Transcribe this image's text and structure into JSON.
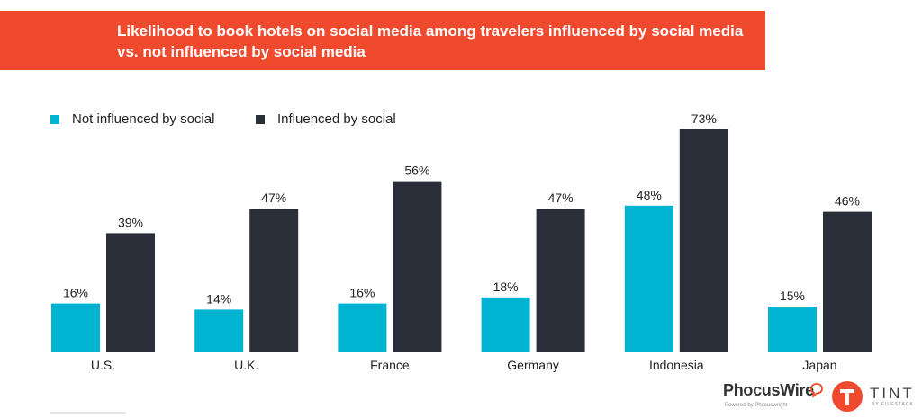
{
  "title": "Likelihood to book hotels on social media among travelers influenced by social media vs. not influenced by social media",
  "colors": {
    "banner": "#f04a2e",
    "not_influenced": "#00b3d1",
    "influenced": "#2a2e38"
  },
  "legend": [
    {
      "label": "Not influenced by social",
      "color": "#00b3d1"
    },
    {
      "label": "Influenced by social",
      "color": "#2a2e38"
    }
  ],
  "chart_data": {
    "type": "bar",
    "title": "Likelihood to book hotels on social media among travelers influenced by social media vs. not influenced by social media",
    "categories": [
      "U.S.",
      "U.K.",
      "France",
      "Germany",
      "Indonesia",
      "Japan"
    ],
    "series": [
      {
        "name": "Not influenced by social",
        "values": [
          16,
          14,
          16,
          18,
          48,
          15
        ],
        "color": "#00b3d1"
      },
      {
        "name": "Influenced by social",
        "values": [
          39,
          47,
          56,
          47,
          73,
          46
        ],
        "color": "#2a2e38"
      }
    ],
    "value_suffix": "%",
    "ylim": [
      0,
      80
    ],
    "grid": false,
    "legend_position": "top-left"
  },
  "logos": {
    "phocuswire": {
      "name": "PhocusWire",
      "tagline": "Powered by Phocuswright"
    },
    "tint": {
      "name": "TINT",
      "tagline": "BY FILESTACK",
      "icon": "t-letter-icon"
    }
  }
}
